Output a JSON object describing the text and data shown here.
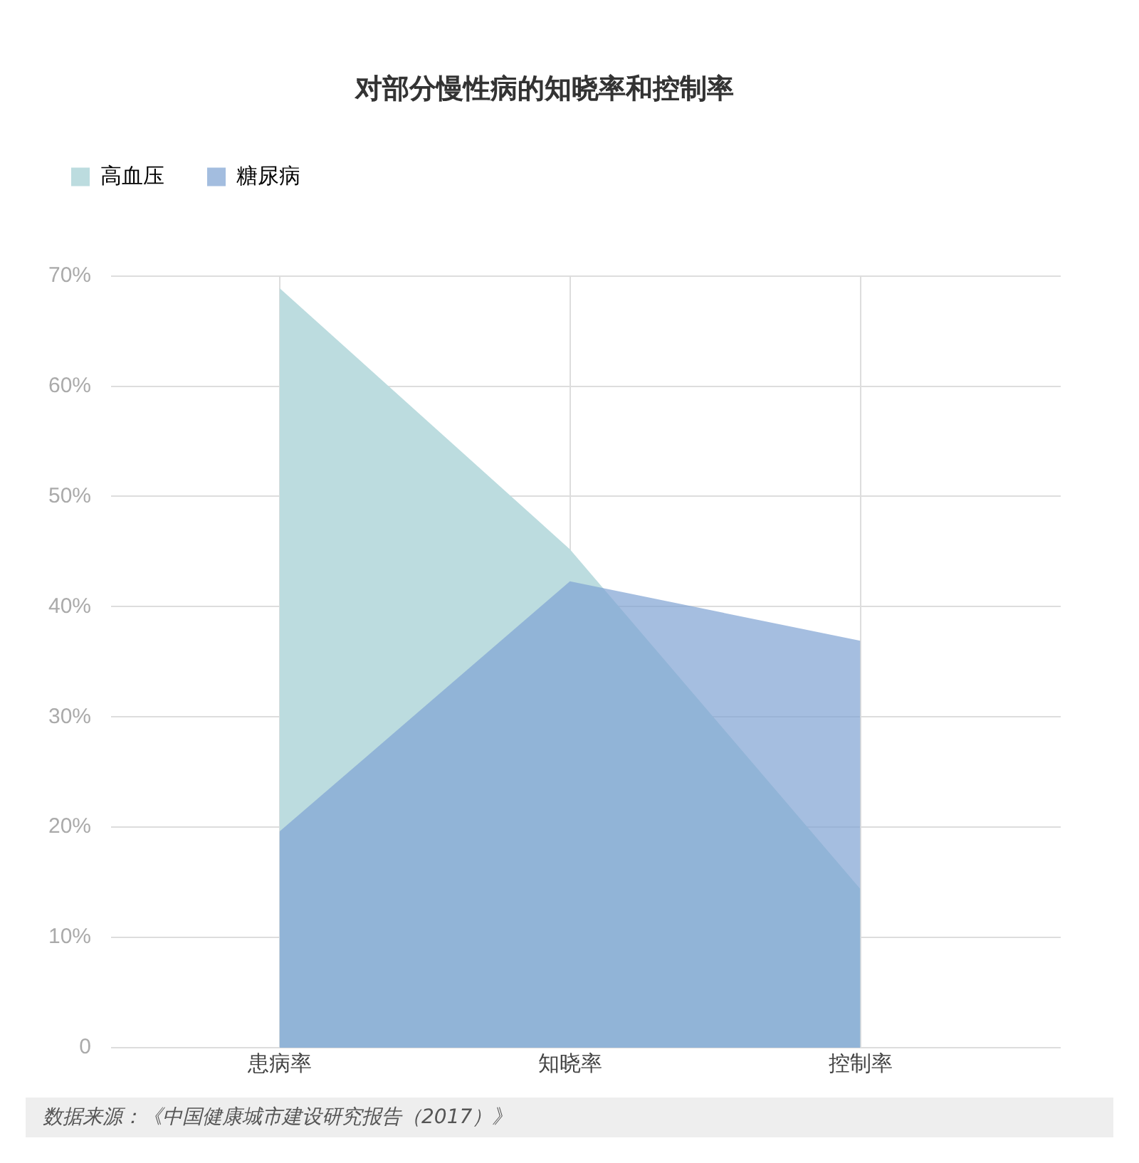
{
  "chart_data": {
    "type": "area",
    "title": "对部分慢性病的知晓率和控制率",
    "categories": [
      "患病率",
      "知晓率",
      "控制率"
    ],
    "series": [
      {
        "name": "高血压",
        "color": "#bcdcdf",
        "values": [
          68.9,
          45.2,
          14.4
        ]
      },
      {
        "name": "糖尿病",
        "color": "#a3bddf",
        "values": [
          19.6,
          42.3,
          36.9
        ]
      }
    ],
    "ylim": [
      0,
      70
    ],
    "yticks": [
      0,
      {
        "value": 10,
        "label": "10%"
      },
      {
        "value": 20,
        "label": "20%"
      },
      {
        "value": 30,
        "label": "30%"
      },
      {
        "value": 40,
        "label": "40%"
      },
      {
        "value": 50,
        "label": "50%"
      },
      {
        "value": 60,
        "label": "60%"
      },
      {
        "value": 70,
        "label": "70%"
      }
    ],
    "grid": true,
    "legend": "top left",
    "annotations": [
      "数据来源：《中国健康城市建设研究报告（2017）》"
    ]
  }
}
